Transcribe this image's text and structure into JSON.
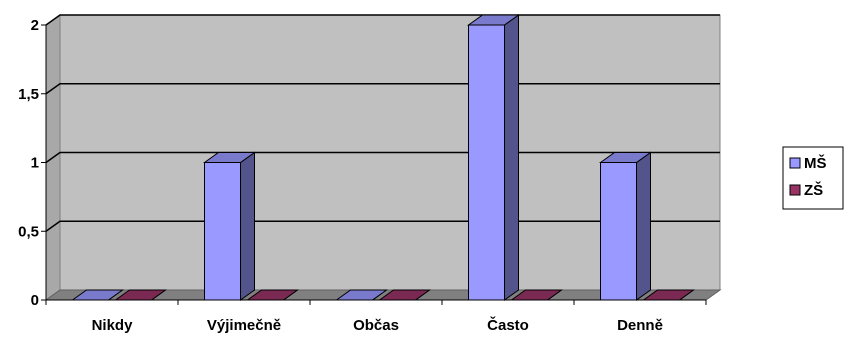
{
  "chart_data": {
    "type": "bar",
    "categories": [
      "Nikdy",
      "Výjimečně",
      "Občas",
      "Často",
      "Denně"
    ],
    "series": [
      {
        "name": "MŠ",
        "values": [
          0,
          1,
          0,
          2,
          1
        ],
        "color": "#9999ff"
      },
      {
        "name": "ZŠ",
        "values": [
          0,
          0,
          0,
          0,
          0
        ],
        "color": "#993366"
      }
    ],
    "ylim": [
      0,
      2
    ],
    "y_ticks": [
      "0",
      "0,5",
      "1",
      "1,5",
      "2"
    ],
    "grid": true,
    "legend": "right",
    "wall_color": "#c0c0c0",
    "title": "",
    "xlabel": "",
    "ylabel": ""
  }
}
